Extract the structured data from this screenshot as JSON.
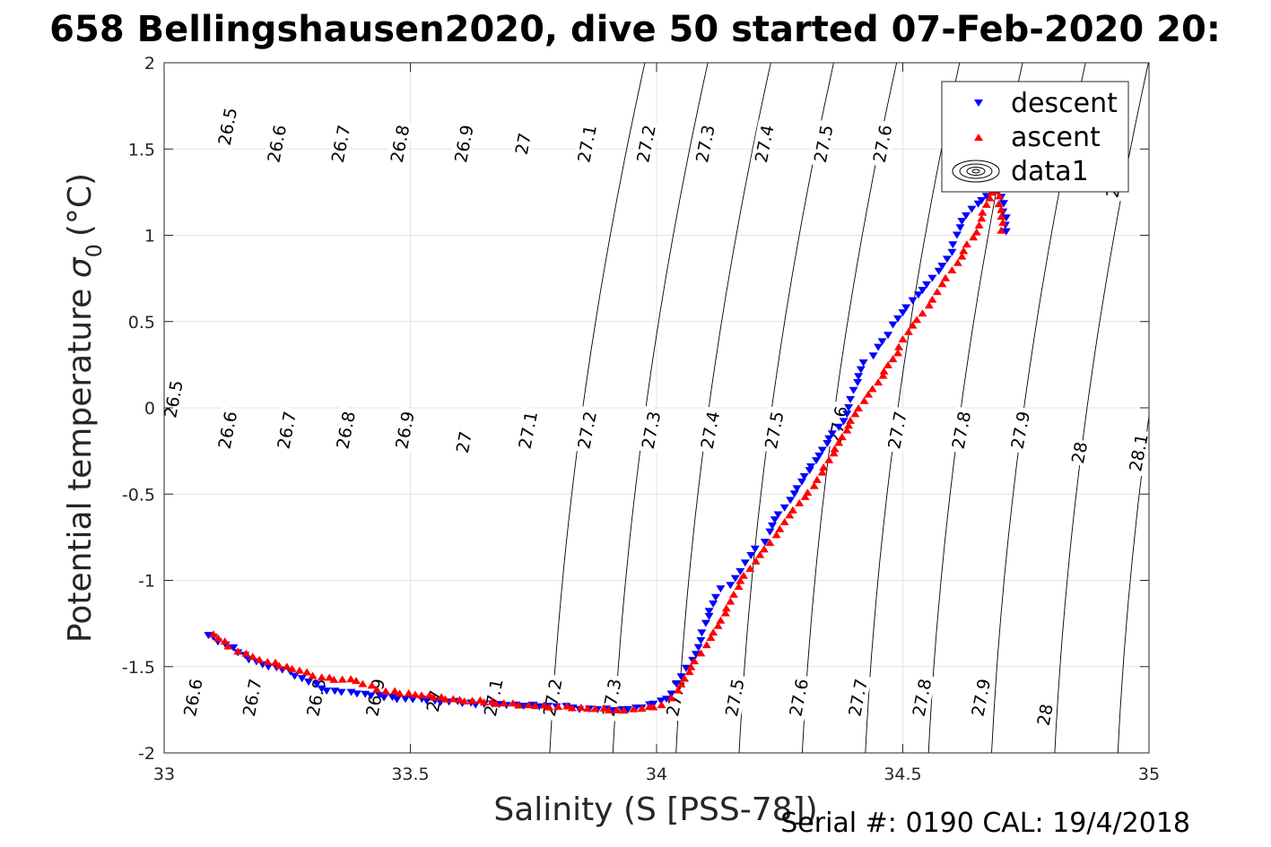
{
  "chart_data": {
    "type": "scatter",
    "title": "658 Bellingshausen2020, dive 50 started 07-Feb-2020 20:",
    "xlabel": "Salinity (S [PSS-78])",
    "ylabel": "Potential temperature",
    "ylabel_symbol": "σ",
    "ylabel_subscript": "0",
    "ylabel_unit": "(°C)",
    "xlim": [
      33,
      35
    ],
    "ylim": [
      -2,
      2
    ],
    "xticks": [
      33,
      33.5,
      34,
      34.5,
      35
    ],
    "xtick_labels": [
      "33",
      "33.5",
      "34",
      "34.5",
      "35"
    ],
    "yticks": [
      -2,
      -1.5,
      -1,
      -0.5,
      0,
      0.5,
      1,
      1.5,
      2
    ],
    "ytick_labels": [
      "-2",
      "-1.5",
      "-1",
      "-0.5",
      "0",
      "0.5",
      "1",
      "1.5",
      "2"
    ],
    "grid": true,
    "legend": {
      "placement": "top-right",
      "entries": [
        {
          "label": "descent",
          "marker": "triangle-down",
          "color": "#0000ff"
        },
        {
          "label": "ascent",
          "marker": "triangle-up",
          "color": "#ff0000"
        },
        {
          "label": "data1",
          "marker": "contour",
          "color": "#000000"
        }
      ]
    },
    "contours": {
      "levels": [
        26.5,
        26.6,
        26.7,
        26.8,
        26.9,
        27,
        27.1,
        27.2,
        27.3,
        27.4,
        27.5,
        27.6,
        27.7,
        27.8,
        27.9,
        28,
        28.1
      ],
      "labels": [
        {
          "text": "26.5",
          "s": 33.13,
          "t": 1.63
        },
        {
          "text": "26.6",
          "s": 33.23,
          "t": 1.53
        },
        {
          "text": "26.7",
          "s": 33.36,
          "t": 1.53
        },
        {
          "text": "26.8",
          "s": 33.48,
          "t": 1.53
        },
        {
          "text": "26.9",
          "s": 33.61,
          "t": 1.53
        },
        {
          "text": "27",
          "s": 33.73,
          "t": 1.53
        },
        {
          "text": "27.1",
          "s": 33.86,
          "t": 1.53
        },
        {
          "text": "27.2",
          "s": 33.98,
          "t": 1.53
        },
        {
          "text": "27.3",
          "s": 34.1,
          "t": 1.53
        },
        {
          "text": "27.4",
          "s": 34.22,
          "t": 1.53
        },
        {
          "text": "27.5",
          "s": 34.34,
          "t": 1.53
        },
        {
          "text": "27.6",
          "s": 34.46,
          "t": 1.53
        },
        {
          "text": "28",
          "s": 34.93,
          "t": 1.28
        },
        {
          "text": "26.5",
          "s": 33.02,
          "t": 0.05
        },
        {
          "text": "26.6",
          "s": 33.13,
          "t": -0.13
        },
        {
          "text": "26.7",
          "s": 33.25,
          "t": -0.13
        },
        {
          "text": "26.8",
          "s": 33.37,
          "t": -0.13
        },
        {
          "text": "26.9",
          "s": 33.49,
          "t": -0.13
        },
        {
          "text": "27",
          "s": 33.61,
          "t": -0.2
        },
        {
          "text": "27.1",
          "s": 33.74,
          "t": -0.13
        },
        {
          "text": "27.2",
          "s": 33.86,
          "t": -0.13
        },
        {
          "text": "27.3",
          "s": 33.99,
          "t": -0.13
        },
        {
          "text": "27.4",
          "s": 34.11,
          "t": -0.13
        },
        {
          "text": "27.5",
          "s": 34.24,
          "t": -0.13
        },
        {
          "text": "27.6",
          "s": 34.37,
          "t": -0.1
        },
        {
          "text": "27.7",
          "s": 34.49,
          "t": -0.13
        },
        {
          "text": "27.8",
          "s": 34.62,
          "t": -0.13
        },
        {
          "text": "27.9",
          "s": 34.74,
          "t": -0.13
        },
        {
          "text": "28",
          "s": 34.86,
          "t": -0.26
        },
        {
          "text": "28.1",
          "s": 34.98,
          "t": -0.26
        },
        {
          "text": "26.6",
          "s": 33.06,
          "t": -1.68
        },
        {
          "text": "26.7",
          "s": 33.18,
          "t": -1.68
        },
        {
          "text": "26.8",
          "s": 33.31,
          "t": -1.68
        },
        {
          "text": "26.9",
          "s": 33.43,
          "t": -1.68
        },
        {
          "text": "27",
          "s": 33.55,
          "t": -1.7
        },
        {
          "text": "27.1",
          "s": 33.67,
          "t": -1.68
        },
        {
          "text": "27.2",
          "s": 33.79,
          "t": -1.68
        },
        {
          "text": "27.3",
          "s": 33.91,
          "t": -1.68
        },
        {
          "text": "27.4",
          "s": 34.04,
          "t": -1.68
        },
        {
          "text": "27.5",
          "s": 34.16,
          "t": -1.68
        },
        {
          "text": "27.6",
          "s": 34.29,
          "t": -1.68
        },
        {
          "text": "27.7",
          "s": 34.41,
          "t": -1.68
        },
        {
          "text": "27.8",
          "s": 34.54,
          "t": -1.68
        },
        {
          "text": "27.9",
          "s": 34.66,
          "t": -1.68
        },
        {
          "text": "28",
          "s": 34.79,
          "t": -1.78
        }
      ]
    },
    "series": [
      {
        "name": "descent",
        "marker": "triangle-down",
        "color": "#0000ff",
        "points": [
          [
            33.09,
            -1.32
          ],
          [
            33.1,
            -1.33
          ],
          [
            33.15,
            -1.42
          ],
          [
            33.2,
            -1.49
          ],
          [
            33.24,
            -1.52
          ],
          [
            33.28,
            -1.57
          ],
          [
            33.32,
            -1.63
          ],
          [
            33.36,
            -1.65
          ],
          [
            33.38,
            -1.65
          ],
          [
            33.42,
            -1.67
          ],
          [
            33.49,
            -1.69
          ],
          [
            33.55,
            -1.7
          ],
          [
            33.65,
            -1.72
          ],
          [
            33.68,
            -1.72
          ],
          [
            33.73,
            -1.73
          ],
          [
            33.78,
            -1.73
          ],
          [
            33.83,
            -1.74
          ],
          [
            33.88,
            -1.75
          ],
          [
            33.93,
            -1.75
          ],
          [
            33.97,
            -1.74
          ],
          [
            34.02,
            -1.69
          ],
          [
            34.03,
            -1.66
          ],
          [
            34.04,
            -1.6
          ],
          [
            34.05,
            -1.56
          ],
          [
            34.06,
            -1.51
          ],
          [
            34.08,
            -1.43
          ],
          [
            34.09,
            -1.35
          ],
          [
            34.1,
            -1.25
          ],
          [
            34.12,
            -1.1
          ],
          [
            34.13,
            -1.05
          ],
          [
            34.15,
            -1.03
          ],
          [
            34.17,
            -0.95
          ],
          [
            34.18,
            -0.9
          ],
          [
            34.2,
            -0.82
          ],
          [
            34.22,
            -0.78
          ],
          [
            34.23,
            -0.72
          ],
          [
            34.24,
            -0.65
          ],
          [
            34.26,
            -0.58
          ],
          [
            34.28,
            -0.5
          ],
          [
            34.3,
            -0.4
          ],
          [
            34.33,
            -0.28
          ],
          [
            34.35,
            -0.18
          ],
          [
            34.38,
            -0.08
          ],
          [
            34.39,
            0.0
          ],
          [
            34.4,
            0.1
          ],
          [
            34.41,
            0.18
          ],
          [
            34.42,
            0.26
          ],
          [
            34.44,
            0.3
          ],
          [
            34.45,
            0.35
          ],
          [
            34.47,
            0.42
          ],
          [
            34.48,
            0.48
          ],
          [
            34.5,
            0.55
          ],
          [
            34.52,
            0.62
          ],
          [
            34.54,
            0.68
          ],
          [
            34.56,
            0.75
          ],
          [
            34.58,
            0.82
          ],
          [
            34.6,
            0.9
          ],
          [
            34.61,
            1.0
          ],
          [
            34.62,
            1.08
          ],
          [
            34.64,
            1.15
          ],
          [
            34.66,
            1.2
          ],
          [
            34.68,
            1.25
          ],
          [
            34.7,
            1.22
          ],
          [
            34.71,
            1.1
          ],
          [
            34.71,
            1.02
          ]
        ]
      },
      {
        "name": "ascent",
        "marker": "triangle-up",
        "color": "#ff0000",
        "points": [
          [
            33.1,
            -1.31
          ],
          [
            33.13,
            -1.38
          ],
          [
            33.15,
            -1.41
          ],
          [
            33.18,
            -1.44
          ],
          [
            33.21,
            -1.47
          ],
          [
            33.26,
            -1.51
          ],
          [
            33.29,
            -1.53
          ],
          [
            33.32,
            -1.56
          ],
          [
            33.39,
            -1.58
          ],
          [
            33.45,
            -1.64
          ],
          [
            33.51,
            -1.66
          ],
          [
            33.6,
            -1.69
          ],
          [
            33.69,
            -1.71
          ],
          [
            33.74,
            -1.72
          ],
          [
            33.8,
            -1.73
          ],
          [
            33.86,
            -1.74
          ],
          [
            33.92,
            -1.75
          ],
          [
            33.97,
            -1.74
          ],
          [
            34.01,
            -1.72
          ],
          [
            34.03,
            -1.68
          ],
          [
            34.05,
            -1.6
          ],
          [
            34.07,
            -1.5
          ],
          [
            34.09,
            -1.42
          ],
          [
            34.11,
            -1.33
          ],
          [
            34.13,
            -1.23
          ],
          [
            34.15,
            -1.12
          ],
          [
            34.17,
            -1.0
          ],
          [
            34.19,
            -0.93
          ],
          [
            34.21,
            -0.85
          ],
          [
            34.23,
            -0.78
          ],
          [
            34.25,
            -0.7
          ],
          [
            34.27,
            -0.62
          ],
          [
            34.29,
            -0.55
          ],
          [
            34.32,
            -0.45
          ],
          [
            34.35,
            -0.3
          ],
          [
            34.37,
            -0.2
          ],
          [
            34.39,
            -0.1
          ],
          [
            34.41,
            0.0
          ],
          [
            34.43,
            0.08
          ],
          [
            34.45,
            0.15
          ],
          [
            34.47,
            0.25
          ],
          [
            34.49,
            0.32
          ],
          [
            34.5,
            0.4
          ],
          [
            34.52,
            0.48
          ],
          [
            34.54,
            0.55
          ],
          [
            34.56,
            0.63
          ],
          [
            34.58,
            0.72
          ],
          [
            34.6,
            0.8
          ],
          [
            34.62,
            0.88
          ],
          [
            34.63,
            0.95
          ],
          [
            34.65,
            1.02
          ],
          [
            34.66,
            1.1
          ],
          [
            34.67,
            1.18
          ],
          [
            34.68,
            1.25
          ],
          [
            34.69,
            1.26
          ],
          [
            34.7,
            1.15
          ],
          [
            34.7,
            1.03
          ]
        ]
      }
    ]
  },
  "footer": {
    "serial": "Serial #: 0190  CAL: 19/4/2018"
  }
}
